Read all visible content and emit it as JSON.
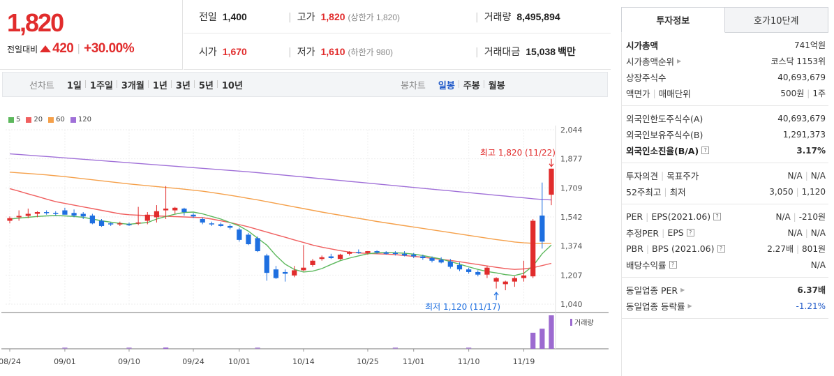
{
  "price": {
    "current": "1,820",
    "change_label": "전일대비",
    "change": "420",
    "change_pct": "+30.00%"
  },
  "stats": {
    "prev_label": "전일",
    "prev": "1,400",
    "high_label": "고가",
    "high": "1,820",
    "high_sub": "(상한가 1,820)",
    "volume_label": "거래량",
    "volume": "8,495,894",
    "open_label": "시가",
    "open": "1,670",
    "low_label": "저가",
    "low": "1,610",
    "low_sub": "(하한가 980)",
    "amount_label": "거래대금",
    "amount": "15,038",
    "amount_unit": "백만"
  },
  "toolbar": {
    "line_title": "선차트",
    "line_items": [
      "1일",
      "1주일",
      "3개월",
      "1년",
      "3년",
      "5년",
      "10년"
    ],
    "candle_title": "봉차트",
    "candle_items": [
      "일봉",
      "주봉",
      "월봉"
    ],
    "candle_selected": 0
  },
  "colors": {
    "up": "#e12c2c",
    "down": "#1e6fe0",
    "ma5": "#5cb85c",
    "ma20": "#f06060",
    "ma60": "#f5a04a",
    "ma120": "#a070d8",
    "volume": "#9c6ad0"
  },
  "chart_data": {
    "type": "candlestick",
    "legend": [
      "5",
      "20",
      "60",
      "120"
    ],
    "y_ticks": [
      "2,044",
      "1,877",
      "1,709",
      "1,542",
      "1,374",
      "1,207",
      "1,040"
    ],
    "ylim": [
      1040,
      2044
    ],
    "x_ticks": [
      {
        "label": "08/24",
        "i": 0
      },
      {
        "label": "09/01",
        "i": 6
      },
      {
        "label": "09/10",
        "i": 13
      },
      {
        "label": "09/24",
        "i": 20
      },
      {
        "label": "10/01",
        "i": 25
      },
      {
        "label": "10/14",
        "i": 32
      },
      {
        "label": "10/25",
        "i": 39
      },
      {
        "label": "11/01",
        "i": 44
      },
      {
        "label": "11/10",
        "i": 50
      },
      {
        "label": "11/19",
        "i": 56
      }
    ],
    "annotations": {
      "high": "최고 1,820 (11/22)",
      "low": "최저 1,120 (11/17)"
    },
    "volume_label": "거래량",
    "candles": [
      [
        1520,
        1545,
        1505,
        1535
      ],
      [
        1540,
        1580,
        1520,
        1548
      ],
      [
        1548,
        1590,
        1535,
        1560
      ],
      [
        1560,
        1575,
        1540,
        1570
      ],
      [
        1570,
        1580,
        1555,
        1565
      ],
      [
        1565,
        1575,
        1550,
        1560
      ],
      [
        1580,
        1595,
        1560,
        1555
      ],
      [
        1565,
        1585,
        1540,
        1550
      ],
      [
        1560,
        1570,
        1530,
        1545
      ],
      [
        1550,
        1560,
        1500,
        1505
      ],
      [
        1520,
        1530,
        1485,
        1490
      ],
      [
        1505,
        1510,
        1490,
        1500
      ],
      [
        1500,
        1515,
        1490,
        1505
      ],
      [
        1500,
        1510,
        1490,
        1498
      ],
      [
        1505,
        1600,
        1495,
        1510
      ],
      [
        1520,
        1570,
        1500,
        1555
      ],
      [
        1540,
        1610,
        1510,
        1575
      ],
      [
        1580,
        1720,
        1530,
        1590
      ],
      [
        1580,
        1600,
        1560,
        1595
      ],
      [
        1590,
        1595,
        1550,
        1570
      ],
      [
        1555,
        1565,
        1535,
        1545
      ],
      [
        1530,
        1540,
        1500,
        1510
      ],
      [
        1505,
        1515,
        1490,
        1500
      ],
      [
        1500,
        1510,
        1485,
        1490
      ],
      [
        1490,
        1500,
        1470,
        1480
      ],
      [
        1470,
        1480,
        1400,
        1410
      ],
      [
        1440,
        1450,
        1380,
        1385
      ],
      [
        1420,
        1430,
        1340,
        1345
      ],
      [
        1320,
        1330,
        1175,
        1220
      ],
      [
        1240,
        1260,
        1185,
        1190
      ],
      [
        1225,
        1240,
        1170,
        1215
      ],
      [
        1205,
        1260,
        1195,
        1235
      ],
      [
        1235,
        1380,
        1230,
        1250
      ],
      [
        1265,
        1300,
        1255,
        1290
      ],
      [
        1300,
        1320,
        1290,
        1310
      ],
      [
        1315,
        1330,
        1300,
        1305
      ],
      [
        1300,
        1330,
        1295,
        1325
      ],
      [
        1330,
        1345,
        1320,
        1340
      ],
      [
        1340,
        1355,
        1330,
        1335
      ],
      [
        1335,
        1345,
        1325,
        1345
      ],
      [
        1345,
        1350,
        1330,
        1338
      ],
      [
        1338,
        1345,
        1325,
        1330
      ],
      [
        1335,
        1345,
        1320,
        1330
      ],
      [
        1330,
        1345,
        1315,
        1320
      ],
      [
        1325,
        1335,
        1305,
        1315
      ],
      [
        1315,
        1325,
        1295,
        1305
      ],
      [
        1305,
        1315,
        1280,
        1290
      ],
      [
        1295,
        1310,
        1275,
        1280
      ],
      [
        1285,
        1300,
        1245,
        1255
      ],
      [
        1265,
        1280,
        1230,
        1240
      ],
      [
        1240,
        1250,
        1215,
        1225
      ],
      [
        1225,
        1235,
        1200,
        1210
      ],
      [
        1210,
        1260,
        1190,
        1250
      ],
      [
        1170,
        1195,
        1130,
        1190
      ],
      [
        1155,
        1175,
        1120,
        1170
      ],
      [
        1170,
        1200,
        1140,
        1190
      ],
      [
        1190,
        1290,
        1170,
        1205
      ],
      [
        1200,
        1530,
        1190,
        1520
      ],
      [
        1550,
        1740,
        1360,
        1400
      ],
      [
        1670,
        1820,
        1610,
        1820
      ]
    ],
    "ma5": [
      1530,
      1535,
      1540,
      1545,
      1548,
      1550,
      1548,
      1545,
      1540,
      1530,
      1520,
      1512,
      1505,
      1500,
      1505,
      1510,
      1530,
      1545,
      1558,
      1568,
      1570,
      1560,
      1545,
      1530,
      1510,
      1490,
      1460,
      1420,
      1380,
      1320,
      1270,
      1240,
      1225,
      1230,
      1245,
      1268,
      1290,
      1305,
      1318,
      1330,
      1335,
      1337,
      1336,
      1333,
      1328,
      1320,
      1310,
      1300,
      1285,
      1270,
      1255,
      1240,
      1228,
      1220,
      1210,
      1205,
      1218,
      1260,
      1330,
      1380
    ],
    "ma20": [
      1705,
      1690,
      1675,
      1660,
      1645,
      1630,
      1620,
      1610,
      1600,
      1590,
      1580,
      1570,
      1560,
      1555,
      1552,
      1550,
      1548,
      1546,
      1544,
      1542,
      1540,
      1538,
      1530,
      1520,
      1510,
      1498,
      1485,
      1470,
      1455,
      1440,
      1425,
      1410,
      1395,
      1380,
      1368,
      1358,
      1348,
      1340,
      1335,
      1332,
      1330,
      1328,
      1325,
      1320,
      1315,
      1310,
      1304,
      1298,
      1292,
      1284,
      1276,
      1268,
      1260,
      1252,
      1245,
      1240,
      1243,
      1250,
      1262,
      1275
    ],
    "ma60": [
      1800,
      1796,
      1792,
      1788,
      1784,
      1779,
      1774,
      1768,
      1762,
      1756,
      1750,
      1744,
      1738,
      1732,
      1727,
      1722,
      1717,
      1712,
      1707,
      1702,
      1696,
      1690,
      1683,
      1675,
      1667,
      1658,
      1649,
      1640,
      1630,
      1620,
      1610,
      1600,
      1590,
      1580,
      1570,
      1561,
      1552,
      1543,
      1534,
      1525,
      1516,
      1508,
      1500,
      1492,
      1484,
      1476,
      1468,
      1460,
      1452,
      1444,
      1436,
      1428,
      1420,
      1412,
      1405,
      1398,
      1393,
      1390,
      1389,
      1390
    ],
    "ma120": [
      1905,
      1902,
      1898,
      1894,
      1890,
      1886,
      1882,
      1878,
      1874,
      1870,
      1866,
      1862,
      1858,
      1854,
      1850,
      1846,
      1842,
      1838,
      1834,
      1830,
      1826,
      1822,
      1818,
      1814,
      1810,
      1806,
      1802,
      1797,
      1792,
      1787,
      1782,
      1777,
      1772,
      1767,
      1762,
      1757,
      1752,
      1747,
      1742,
      1737,
      1732,
      1727,
      1722,
      1717,
      1712,
      1707,
      1702,
      1697,
      1692,
      1687,
      1682,
      1677,
      1672,
      1667,
      1662,
      1657,
      1652,
      1647,
      1643,
      1640
    ],
    "volume": [
      0,
      0,
      0,
      0,
      0,
      0,
      0,
      0,
      0,
      0,
      0,
      0,
      0,
      0,
      0,
      0,
      0,
      3,
      0,
      0,
      0,
      0,
      0,
      0,
      0,
      0,
      0,
      0,
      0,
      0,
      0,
      0,
      0,
      0,
      0,
      0,
      0,
      0,
      0,
      0,
      0,
      0,
      0,
      0,
      0,
      0,
      0,
      0,
      0,
      0,
      0,
      0,
      0,
      0,
      0,
      0,
      0,
      48,
      60,
      100
    ]
  },
  "panel": {
    "tab_active": "투자정보",
    "tab_other": "호가10단계",
    "sections": [
      [
        {
          "k": "시가총액",
          "v": "741억원",
          "bold_k": true
        },
        {
          "k": "시가총액순위",
          "arrow": true,
          "v": "코스닥 1153위"
        },
        {
          "k": "상장주식수",
          "v": "40,693,679"
        },
        {
          "k": "액면가",
          "k2": "매매단위",
          "v": "500원",
          "v2": "1주"
        }
      ],
      [
        {
          "k": "외국인한도주식수(A)",
          "v": "40,693,679"
        },
        {
          "k": "외국인보유주식수(B)",
          "v": "1,291,373"
        },
        {
          "k": "외국인소진율(B/A)",
          "q": true,
          "v": "3.17%",
          "bold_k": true,
          "bold_v": true
        }
      ],
      [
        {
          "k": "투자의견",
          "k2": "목표주가",
          "v": "N/A",
          "v2": "N/A"
        },
        {
          "k": "52주최고",
          "k2": "최저",
          "v": "3,050",
          "v2": "1,120"
        }
      ],
      [
        {
          "k": "PER",
          "k2": "EPS(2021.06)",
          "q": true,
          "v": "N/A",
          "v2": "-210원"
        },
        {
          "k": "추정PER",
          "k2": "EPS",
          "q": true,
          "v": "N/A",
          "v2": "N/A"
        },
        {
          "k": "PBR",
          "k2": "BPS (2021.06)",
          "q": true,
          "v": "2.27배",
          "v2": "801원"
        },
        {
          "k": "배당수익률",
          "q": true,
          "v": "N/A"
        }
      ],
      [
        {
          "k": "동일업종 PER",
          "arrow": true,
          "v": "6.37배",
          "bold_v": true
        },
        {
          "k": "동일업종 등락률",
          "arrow": true,
          "v": "-1.21%",
          "blue": true
        }
      ]
    ]
  }
}
